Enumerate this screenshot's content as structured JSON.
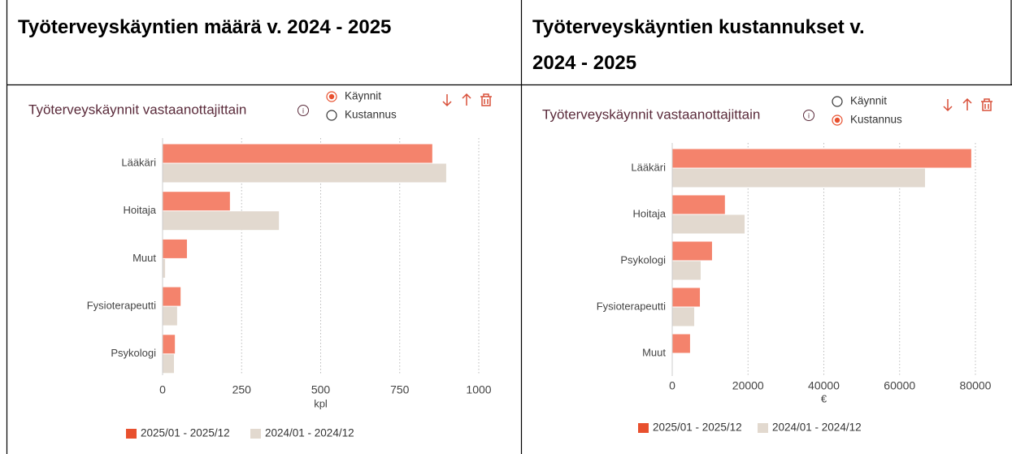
{
  "headers": [
    "Työterveyskäyntien määrä v. 2024 - 2025",
    "Työterveyskäyntien kustannukset v. 2024 - 2025"
  ],
  "chart_data": [
    {
      "type": "bar",
      "orientation": "horizontal",
      "title": "Työterveyskäynnit vastaanottajittain",
      "options": [
        "Käynnit",
        "Kustannus"
      ],
      "selected": "Käynnit",
      "categories": [
        "Lääkäri",
        "Hoitaja",
        "Muut",
        "Fysioterapeutti",
        "Psykologi"
      ],
      "series": [
        {
          "name": "2025/01 - 2025/12",
          "color": "#f4836c",
          "values": [
            853,
            213,
            77,
            57,
            39
          ]
        },
        {
          "name": "2024/01 - 2024/12",
          "color": "#e2d9cf",
          "values": [
            897,
            368,
            8,
            46,
            36
          ]
        }
      ],
      "xlabel": "kpl",
      "xlim": [
        0,
        1000
      ],
      "xticks": [
        0,
        250,
        500,
        750,
        1000
      ],
      "grid": true
    },
    {
      "type": "bar",
      "orientation": "horizontal",
      "title": "Työterveyskäynnit vastaanottajittain",
      "options": [
        "Käynnit",
        "Kustannus"
      ],
      "selected": "Kustannus",
      "categories": [
        "Lääkäri",
        "Hoitaja",
        "Psykologi",
        "Fysioterapeutti",
        "Muut"
      ],
      "series": [
        {
          "name": "2025/01 - 2025/12",
          "color": "#f4836c",
          "values": [
            78900,
            13900,
            10500,
            7300,
            4700
          ]
        },
        {
          "name": "2024/01 - 2024/12",
          "color": "#e2d9cf",
          "values": [
            66700,
            19100,
            7500,
            5800,
            null
          ]
        }
      ],
      "xlabel": "€",
      "xlim": [
        0,
        80000
      ],
      "xticks": [
        0,
        20000,
        40000,
        60000,
        80000
      ],
      "grid": true
    }
  ]
}
